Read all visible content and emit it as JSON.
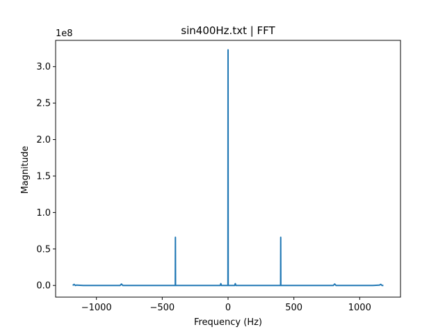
{
  "chart_data": {
    "type": "line",
    "title": "sin400Hz.txt | FFT",
    "xlabel": "Frequency (Hz)",
    "ylabel": "Magnitude",
    "y_offset_label": "1e8",
    "xlim": [
      -1310,
      1310
    ],
    "ylim": [
      -0.16,
      3.36
    ],
    "y_scale_factor": 100000000,
    "x_ticks": [
      -1000,
      -500,
      0,
      500,
      1000
    ],
    "x_tick_labels": [
      "−1000",
      "−500",
      "0",
      "500",
      "1000"
    ],
    "y_ticks": [
      0.0,
      0.5,
      1.0,
      1.5,
      2.0,
      2.5,
      3.0
    ],
    "y_tick_labels": [
      "0.0",
      "0.5",
      "1.0",
      "1.5",
      "2.0",
      "2.5",
      "3.0"
    ],
    "grid": false,
    "line_color": "#1f77b4",
    "series": [
      {
        "x": [
          -1180,
          -1170,
          -1160,
          -1150,
          -1100,
          -1000,
          -900,
          -820,
          -810,
          -800,
          -700,
          -600,
          -500,
          -410,
          -401,
          -400,
          -399,
          -390,
          -300,
          -200,
          -100,
          -60,
          -55,
          -50,
          -10,
          -1,
          0,
          1,
          10,
          50,
          55,
          60,
          100,
          200,
          300,
          390,
          399,
          400,
          401,
          410,
          500,
          600,
          700,
          800,
          810,
          820,
          900,
          1000,
          1100,
          1150,
          1160,
          1170,
          1180
        ],
        "y": [
          0.0,
          0.015,
          0.0,
          0.005,
          0.0,
          0.0,
          0.0,
          0.0,
          0.02,
          0.0,
          0.0,
          0.0,
          0.0,
          0.0,
          0.0,
          0.66,
          0.0,
          0.0,
          0.0,
          0.0,
          0.0,
          0.0,
          0.025,
          0.0,
          0.0,
          0.0,
          3.23,
          0.0,
          0.0,
          0.0,
          0.025,
          0.0,
          0.0,
          0.0,
          0.0,
          0.0,
          0.0,
          0.66,
          0.0,
          0.0,
          0.0,
          0.0,
          0.0,
          0.0,
          0.02,
          0.0,
          0.0,
          0.0,
          0.0,
          0.005,
          0.015,
          0.0,
          0.0
        ]
      }
    ]
  }
}
